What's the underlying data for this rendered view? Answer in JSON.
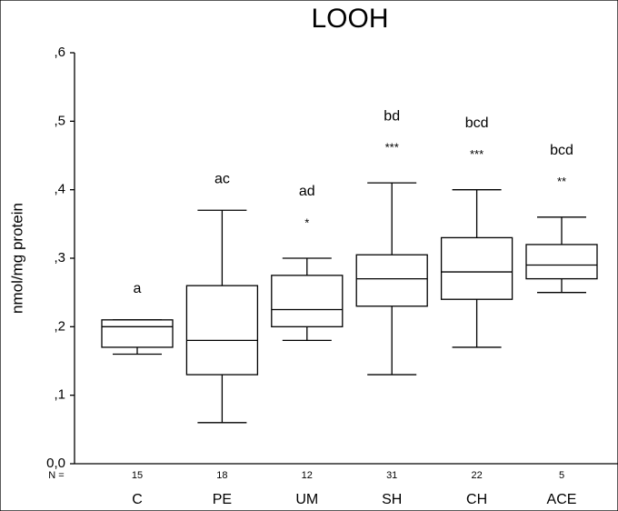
{
  "chart_data": {
    "type": "box",
    "title": "LOOH",
    "y_label": "nmol/mg protein",
    "n_label": "N =",
    "categories": [
      "C",
      "PE",
      "UM",
      "SH",
      "CH",
      "ACE"
    ],
    "n": [
      15,
      18,
      12,
      31,
      22,
      5
    ],
    "boxes": [
      {
        "min": 0.16,
        "q1": 0.17,
        "median": 0.2,
        "q3": 0.21,
        "max": 0.21
      },
      {
        "min": 0.06,
        "q1": 0.13,
        "median": 0.18,
        "q3": 0.26,
        "max": 0.37
      },
      {
        "min": 0.18,
        "q1": 0.2,
        "median": 0.225,
        "q3": 0.275,
        "max": 0.3
      },
      {
        "min": 0.13,
        "q1": 0.23,
        "median": 0.27,
        "q3": 0.305,
        "max": 0.41
      },
      {
        "min": 0.17,
        "q1": 0.24,
        "median": 0.28,
        "q3": 0.33,
        "max": 0.4
      },
      {
        "min": 0.25,
        "q1": 0.27,
        "median": 0.29,
        "q3": 0.32,
        "max": 0.36
      }
    ],
    "letters": [
      "a",
      "ac",
      "ad",
      "bd",
      "bcd",
      "bcd"
    ],
    "stars": [
      null,
      null,
      "*",
      "***",
      "***",
      "**"
    ],
    "color": "#000000",
    "ylim": [
      0,
      0.6
    ],
    "yticks": [
      {
        "value": 0,
        "label": "0,0"
      },
      {
        "value": 0.1,
        "label": ",1"
      },
      {
        "value": 0.2,
        "label": ",2"
      },
      {
        "value": 0.3,
        "label": ",3"
      },
      {
        "value": 0.4,
        "label": ",4"
      },
      {
        "value": 0.5,
        "label": ",5"
      },
      {
        "value": 0.6,
        "label": ",6"
      }
    ]
  }
}
